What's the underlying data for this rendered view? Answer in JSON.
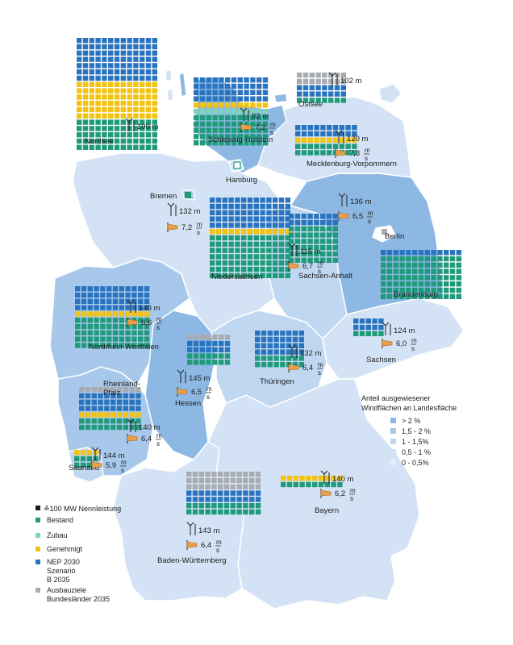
{
  "colors": {
    "bestand": "#1f9a7a",
    "zubau": "#7dd3bb",
    "genehmigt": "#f2c313",
    "nep": "#2a74bf",
    "ausbau": "#a8acb0",
    "share_gt2": "#8db8e3",
    "share_15_2": "#a7c8ea",
    "share_1_15": "#bfd7f0",
    "share_05_1": "#d3e3f5",
    "share_0_05": "#e3edf9",
    "sea": "#ffffff"
  },
  "icons": [
    "wind-turbine-icon",
    "windsock-icon"
  ],
  "legend": {
    "title_line1": "Anteil ausgewiesener",
    "title_line2": "Windflächen an Landesfläche",
    "share_classes": [
      {
        "label": "> 2 %",
        "color": "#8db8e3"
      },
      {
        "label": "1,5 - 2 %",
        "color": "#a7c8ea"
      },
      {
        "label": "1 - 1,5%",
        "color": "#bfd7f0"
      },
      {
        "label": "0,5 - 1 %",
        "color": "#d3e3f5"
      },
      {
        "label": "0 - 0,5%",
        "color": "#e3edf9"
      }
    ],
    "unit_label": "≙100 MW Nennleistung",
    "categories": [
      {
        "label": "Bestand",
        "color": "#1f9a7a"
      },
      {
        "label": "Zubau",
        "color": "#7dd3bb"
      },
      {
        "label": "Genehmigt",
        "color": "#f2c313"
      },
      {
        "label": "NEP 2030\nSzenario\nB 2035",
        "color": "#2a74bf"
      },
      {
        "label": "Ausbauziele\nBundesländer 2035",
        "color": "#a8acb0"
      }
    ]
  },
  "cities": [
    {
      "name": "Hamburg"
    },
    {
      "name": "Bremen"
    },
    {
      "name": "Berlin"
    }
  ],
  "regions": [
    {
      "name": "Nordsee",
      "hub_height": "109 m",
      "wind_speed": "",
      "ms": ""
    },
    {
      "name": "Ostsee",
      "hub_height": "102 m",
      "wind_speed": "",
      "ms": ""
    },
    {
      "name": "Schleswig-Holstein",
      "hub_height": "92 m",
      "wind_speed": "7,2",
      "ms": "m/s"
    },
    {
      "name": "Mecklenburg-Vorpommern",
      "hub_height": "120 m",
      "wind_speed": "7,3",
      "ms": "m/s"
    },
    {
      "name": "Niedersachsen",
      "hub_height": "132 m",
      "wind_speed": "7,2",
      "ms": "m/s"
    },
    {
      "name": "Brandenburg",
      "hub_height": "136 m",
      "wind_speed": "6,5",
      "ms": "m/s"
    },
    {
      "name": "Sachsen-Anhalt",
      "hub_height": "115 m",
      "wind_speed": "6,7",
      "ms": "m/s"
    },
    {
      "name": "Nordrhein-Westfalen",
      "hub_height": "140 m",
      "wind_speed": "6,6",
      "ms": "m/s"
    },
    {
      "name": "Sachsen",
      "hub_height": "124 m",
      "wind_speed": "6,0",
      "ms": "m/s"
    },
    {
      "name": "Thüringen",
      "hub_height": "132 m",
      "wind_speed": "6,4",
      "ms": "m/s"
    },
    {
      "name": "Hessen",
      "hub_height": "145 m",
      "wind_speed": "6,5",
      "ms": "m/s"
    },
    {
      "name": "Rheinland-\nPfalz",
      "hub_height": "140 m",
      "wind_speed": "6,4",
      "ms": "m/s"
    },
    {
      "name": "Saarland",
      "hub_height": "144 m",
      "wind_speed": "5,9",
      "ms": "m/s"
    },
    {
      "name": "Bayern",
      "hub_height": "140 m",
      "wind_speed": "6,2",
      "ms": "m/s"
    },
    {
      "name": "Baden-Württemberg",
      "hub_height": "143 m",
      "wind_speed": "6,4",
      "ms": "m/s"
    }
  ]
}
